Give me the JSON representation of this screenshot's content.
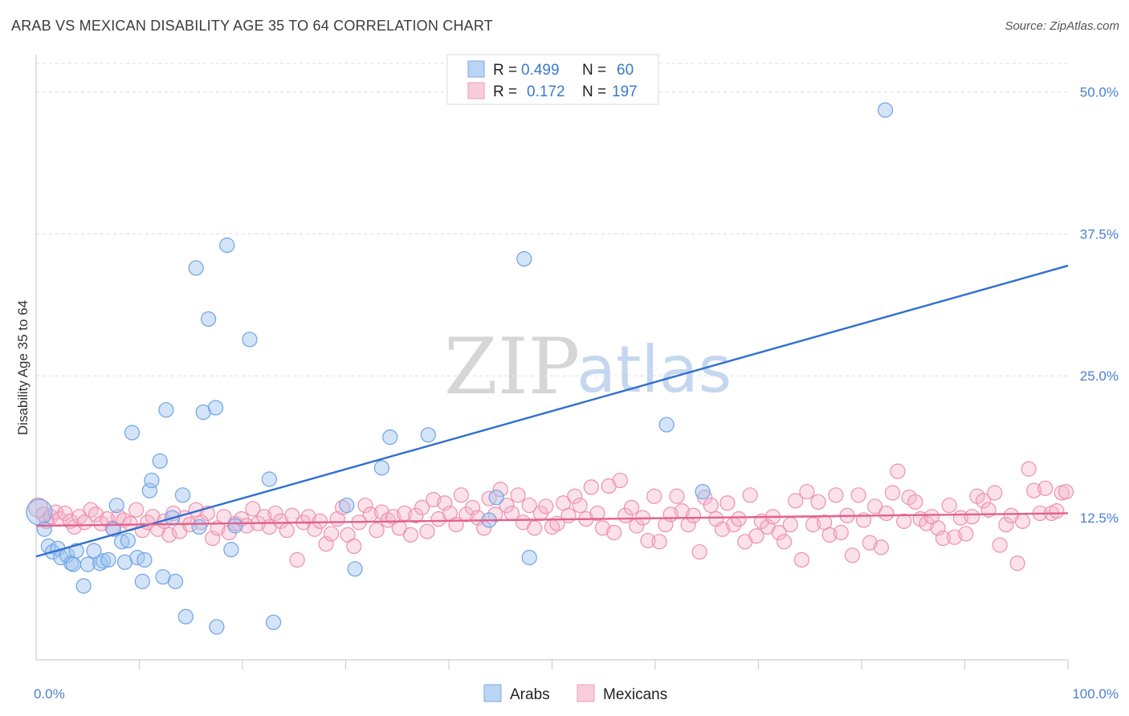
{
  "header": {
    "title": "ARAB VS MEXICAN DISABILITY AGE 35 TO 64 CORRELATION CHART",
    "source": "Source: ZipAtlas.com"
  },
  "watermark": {
    "zip": "ZIP",
    "atlas": "atlas"
  },
  "legend": {
    "rows": [
      {
        "r_label": "R =",
        "r_value": "0.499",
        "n_label": "N =",
        "n_value": "60",
        "color": "#9ec3f0"
      },
      {
        "r_label": "R =",
        "r_value": "0.172",
        "n_label": "N =",
        "n_value": "197",
        "color": "#f5b3c8"
      }
    ]
  },
  "bottom_legend": [
    {
      "label": "Arabs",
      "color": "#9ec3f0"
    },
    {
      "label": "Mexicans",
      "color": "#f5b3c8"
    }
  ],
  "chart_data": {
    "type": "scatter",
    "ylabel": "Disability Age 35 to 64",
    "xlim": [
      0,
      100
    ],
    "ylim": [
      0,
      53
    ],
    "x_tick_labels": [
      {
        "value": 0,
        "label": "0.0%"
      },
      {
        "value": 100,
        "label": "100.0%"
      }
    ],
    "y_tick_labels": [
      {
        "value": 12.5,
        "label": "12.5%"
      },
      {
        "value": 25.0,
        "label": "25.0%"
      },
      {
        "value": 37.5,
        "label": "37.5%"
      },
      {
        "value": 50.0,
        "label": "50.0%"
      }
    ],
    "grid": true,
    "legend_position": "top-center",
    "series": [
      {
        "name": "Arabs",
        "color": "#6fa3e6",
        "fill": "rgba(158,195,240,0.45)",
        "trend": {
          "x": [
            0,
            100
          ],
          "y": [
            9.1,
            34.7
          ],
          "color": "#2f6fcf"
        },
        "points": [
          [
            0.3,
            13.0
          ],
          [
            0.8,
            11.5
          ],
          [
            1.2,
            10.0
          ],
          [
            1.6,
            9.5
          ],
          [
            2.1,
            9.8
          ],
          [
            2.4,
            9.0
          ],
          [
            3.0,
            9.2
          ],
          [
            3.4,
            8.5
          ],
          [
            3.6,
            8.4
          ],
          [
            3.9,
            9.6
          ],
          [
            4.6,
            6.5
          ],
          [
            5.0,
            8.4
          ],
          [
            5.6,
            9.6
          ],
          [
            6.2,
            8.5
          ],
          [
            6.5,
            8.7
          ],
          [
            7.0,
            8.8
          ],
          [
            7.5,
            11.5
          ],
          [
            7.8,
            13.6
          ],
          [
            8.3,
            10.4
          ],
          [
            8.6,
            8.6
          ],
          [
            8.9,
            10.5
          ],
          [
            9.3,
            20.0
          ],
          [
            9.8,
            9.0
          ],
          [
            10.3,
            6.9
          ],
          [
            10.5,
            8.8
          ],
          [
            11.0,
            14.9
          ],
          [
            11.2,
            15.8
          ],
          [
            12.0,
            17.5
          ],
          [
            12.3,
            7.3
          ],
          [
            12.6,
            22.0
          ],
          [
            13.2,
            12.5
          ],
          [
            13.5,
            6.9
          ],
          [
            14.2,
            14.5
          ],
          [
            14.5,
            3.8
          ],
          [
            15.5,
            34.5
          ],
          [
            15.8,
            11.7
          ],
          [
            16.2,
            21.8
          ],
          [
            16.7,
            30.0
          ],
          [
            17.4,
            22.2
          ],
          [
            17.5,
            2.9
          ],
          [
            18.5,
            36.5
          ],
          [
            18.9,
            9.7
          ],
          [
            19.3,
            11.8
          ],
          [
            20.7,
            28.2
          ],
          [
            22.6,
            15.9
          ],
          [
            23.0,
            3.3
          ],
          [
            30.1,
            13.6
          ],
          [
            30.9,
            8.0
          ],
          [
            33.5,
            16.9
          ],
          [
            34.3,
            19.6
          ],
          [
            38.0,
            19.8
          ],
          [
            43.9,
            12.3
          ],
          [
            44.6,
            14.3
          ],
          [
            47.3,
            35.3
          ],
          [
            47.8,
            9.0
          ],
          [
            61.1,
            20.7
          ],
          [
            64.6,
            14.8
          ],
          [
            82.3,
            48.4
          ]
        ]
      },
      {
        "name": "Mexicans",
        "color": "#ee8fb0",
        "fill": "rgba(245,179,200,0.40)",
        "trend": {
          "x": [
            0,
            100
          ],
          "y": [
            11.8,
            12.9
          ],
          "color": "#e2608d"
        },
        "points": [
          [
            0.2,
            13.4
          ],
          [
            0.7,
            12.8
          ],
          [
            1.0,
            12.2
          ],
          [
            1.4,
            12.6
          ],
          [
            1.9,
            13.0
          ],
          [
            2.3,
            12.4
          ],
          [
            2.8,
            12.9
          ],
          [
            3.3,
            12.2
          ],
          [
            3.7,
            11.7
          ],
          [
            4.2,
            12.6
          ],
          [
            4.7,
            12.1
          ],
          [
            5.3,
            13.2
          ],
          [
            5.8,
            12.8
          ],
          [
            6.3,
            12.0
          ],
          [
            6.9,
            12.4
          ],
          [
            7.4,
            11.6
          ],
          [
            8.0,
            12.6
          ],
          [
            8.5,
            12.3
          ],
          [
            9.1,
            12.0
          ],
          [
            9.7,
            13.2
          ],
          [
            10.3,
            11.4
          ],
          [
            10.8,
            12.1
          ],
          [
            11.3,
            12.6
          ],
          [
            11.8,
            11.5
          ],
          [
            12.4,
            12.2
          ],
          [
            12.9,
            11.0
          ],
          [
            13.3,
            12.9
          ],
          [
            13.9,
            11.3
          ],
          [
            14.4,
            12.5
          ],
          [
            14.9,
            11.9
          ],
          [
            15.5,
            13.2
          ],
          [
            16.0,
            12.1
          ],
          [
            16.6,
            12.9
          ],
          [
            17.1,
            10.7
          ],
          [
            17.6,
            11.6
          ],
          [
            18.2,
            12.6
          ],
          [
            18.7,
            11.2
          ],
          [
            19.3,
            12.0
          ],
          [
            19.9,
            12.4
          ],
          [
            20.4,
            11.8
          ],
          [
            21.0,
            13.3
          ],
          [
            21.5,
            12.0
          ],
          [
            22.1,
            12.6
          ],
          [
            22.6,
            11.7
          ],
          [
            23.2,
            12.9
          ],
          [
            23.7,
            12.2
          ],
          [
            24.3,
            11.4
          ],
          [
            24.8,
            12.7
          ],
          [
            25.3,
            8.8
          ],
          [
            25.9,
            12.1
          ],
          [
            26.4,
            12.6
          ],
          [
            27.0,
            11.5
          ],
          [
            27.5,
            12.2
          ],
          [
            28.1,
            10.2
          ],
          [
            28.6,
            11.1
          ],
          [
            29.2,
            12.4
          ],
          [
            29.7,
            13.4
          ],
          [
            30.2,
            11.0
          ],
          [
            30.8,
            10.0
          ],
          [
            31.3,
            12.1
          ],
          [
            31.9,
            13.6
          ],
          [
            32.4,
            12.8
          ],
          [
            33.0,
            11.4
          ],
          [
            33.5,
            13.0
          ],
          [
            34.1,
            12.3
          ],
          [
            34.6,
            12.6
          ],
          [
            35.2,
            11.6
          ],
          [
            35.7,
            12.9
          ],
          [
            36.3,
            11.0
          ],
          [
            36.8,
            12.7
          ],
          [
            37.4,
            13.4
          ],
          [
            37.9,
            11.3
          ],
          [
            38.5,
            14.1
          ],
          [
            39.0,
            12.4
          ],
          [
            39.6,
            13.8
          ],
          [
            40.1,
            12.9
          ],
          [
            40.7,
            11.9
          ],
          [
            41.2,
            14.5
          ],
          [
            41.7,
            12.8
          ],
          [
            42.3,
            13.4
          ],
          [
            42.8,
            12.5
          ],
          [
            43.4,
            11.6
          ],
          [
            43.9,
            14.2
          ],
          [
            44.5,
            12.8
          ],
          [
            45.0,
            15.0
          ],
          [
            45.6,
            13.6
          ],
          [
            46.1,
            12.9
          ],
          [
            46.7,
            14.5
          ],
          [
            47.2,
            12.1
          ],
          [
            47.8,
            13.6
          ],
          [
            48.3,
            11.6
          ],
          [
            48.9,
            12.9
          ],
          [
            49.4,
            13.5
          ],
          [
            50.0,
            11.7
          ],
          [
            50.5,
            12.0
          ],
          [
            51.1,
            13.8
          ],
          [
            51.6,
            12.7
          ],
          [
            52.2,
            14.4
          ],
          [
            52.7,
            13.6
          ],
          [
            53.3,
            12.4
          ],
          [
            53.8,
            15.2
          ],
          [
            54.4,
            12.9
          ],
          [
            54.9,
            11.6
          ],
          [
            55.5,
            15.3
          ],
          [
            56.0,
            11.2
          ],
          [
            56.6,
            15.8
          ],
          [
            57.1,
            12.7
          ],
          [
            57.7,
            13.4
          ],
          [
            58.2,
            11.8
          ],
          [
            58.8,
            12.5
          ],
          [
            59.3,
            10.5
          ],
          [
            59.9,
            14.4
          ],
          [
            60.4,
            10.4
          ],
          [
            61.0,
            11.9
          ],
          [
            61.5,
            12.8
          ],
          [
            62.1,
            14.4
          ],
          [
            62.6,
            13.1
          ],
          [
            63.2,
            11.9
          ],
          [
            63.7,
            12.7
          ],
          [
            64.3,
            9.5
          ],
          [
            64.8,
            14.3
          ],
          [
            65.4,
            13.6
          ],
          [
            65.9,
            12.4
          ],
          [
            66.5,
            11.5
          ],
          [
            67.0,
            13.8
          ],
          [
            67.6,
            11.9
          ],
          [
            68.1,
            12.4
          ],
          [
            68.7,
            10.4
          ],
          [
            69.2,
            14.5
          ],
          [
            69.8,
            10.9
          ],
          [
            70.3,
            12.2
          ],
          [
            70.9,
            11.7
          ],
          [
            71.4,
            12.6
          ],
          [
            72.0,
            11.2
          ],
          [
            72.5,
            10.4
          ],
          [
            73.1,
            11.9
          ],
          [
            73.6,
            14.0
          ],
          [
            74.2,
            8.8
          ],
          [
            74.7,
            14.8
          ],
          [
            75.3,
            11.9
          ],
          [
            75.8,
            13.9
          ],
          [
            76.4,
            12.1
          ],
          [
            76.9,
            11.0
          ],
          [
            77.5,
            14.5
          ],
          [
            78.0,
            11.2
          ],
          [
            78.6,
            12.7
          ],
          [
            79.1,
            9.2
          ],
          [
            79.7,
            14.5
          ],
          [
            80.2,
            12.3
          ],
          [
            80.8,
            10.3
          ],
          [
            81.3,
            13.5
          ],
          [
            81.9,
            9.9
          ],
          [
            82.4,
            12.9
          ],
          [
            83.0,
            14.7
          ],
          [
            83.5,
            16.6
          ],
          [
            84.1,
            12.2
          ],
          [
            84.6,
            14.3
          ],
          [
            85.2,
            13.9
          ],
          [
            85.7,
            12.4
          ],
          [
            86.3,
            12.0
          ],
          [
            86.8,
            12.6
          ],
          [
            87.4,
            11.6
          ],
          [
            87.9,
            10.7
          ],
          [
            88.5,
            13.6
          ],
          [
            89.0,
            10.8
          ],
          [
            89.6,
            12.5
          ],
          [
            90.1,
            11.1
          ],
          [
            90.7,
            12.6
          ],
          [
            91.2,
            14.4
          ],
          [
            91.8,
            14.0
          ],
          [
            92.3,
            13.2
          ],
          [
            92.9,
            14.7
          ],
          [
            93.4,
            10.1
          ],
          [
            94.0,
            11.9
          ],
          [
            94.5,
            12.7
          ],
          [
            95.1,
            8.5
          ],
          [
            95.6,
            12.2
          ],
          [
            96.2,
            16.8
          ],
          [
            96.7,
            14.9
          ],
          [
            97.3,
            12.9
          ],
          [
            97.8,
            15.1
          ],
          [
            98.4,
            12.9
          ],
          [
            98.9,
            13.1
          ],
          [
            99.4,
            14.7
          ],
          [
            99.8,
            14.8
          ]
        ]
      }
    ]
  }
}
